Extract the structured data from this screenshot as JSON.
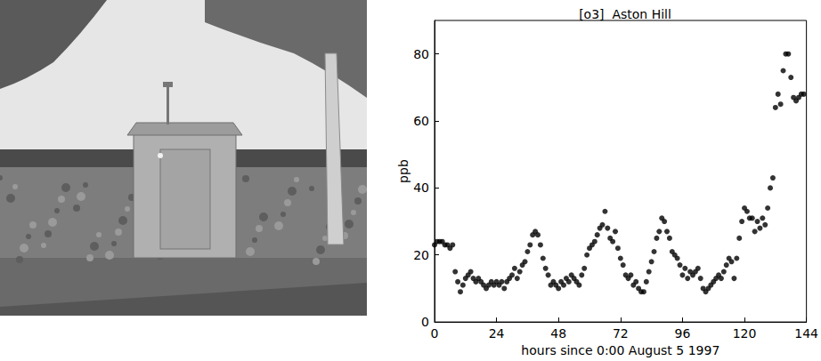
{
  "chart_data": {
    "type": "scatter",
    "title": "[o3]  Aston Hill",
    "x_label": "hours since 0:00 August 5 1997",
    "y_label": "ppb",
    "x": [
      0,
      1,
      2,
      3,
      4,
      5,
      6,
      7,
      8,
      9,
      10,
      11,
      12,
      13,
      14,
      15,
      16,
      17,
      18,
      19,
      20,
      21,
      22,
      23,
      24,
      25,
      26,
      27,
      28,
      29,
      30,
      31,
      32,
      33,
      34,
      35,
      36,
      37,
      38,
      39,
      40,
      41,
      42,
      43,
      44,
      45,
      46,
      47,
      48,
      49,
      50,
      51,
      52,
      53,
      54,
      55,
      56,
      57,
      58,
      59,
      60,
      61,
      62,
      63,
      64,
      65,
      66,
      67,
      68,
      69,
      70,
      71,
      72,
      73,
      74,
      75,
      76,
      77,
      78,
      79,
      80,
      81,
      82,
      83,
      84,
      85,
      86,
      87,
      88,
      89,
      90,
      91,
      92,
      93,
      94,
      95,
      96,
      97,
      98,
      99,
      100,
      101,
      102,
      103,
      104,
      105,
      106,
      107,
      108,
      109,
      110,
      111,
      112,
      113,
      114,
      115,
      116,
      117,
      118,
      119,
      120,
      121,
      122,
      123,
      124,
      125,
      126,
      127,
      128,
      129,
      130,
      131,
      132,
      133,
      134,
      135,
      136,
      137,
      138,
      139,
      140,
      141,
      142,
      143
    ],
    "values": [
      23,
      24,
      24,
      24,
      23,
      23,
      22,
      23,
      15,
      12,
      9,
      11,
      13,
      14,
      15,
      13,
      12,
      13,
      12,
      11,
      10,
      11,
      12,
      11,
      12,
      11,
      12,
      10,
      12,
      13,
      14,
      16,
      13,
      15,
      17,
      18,
      21,
      23,
      26,
      27,
      26,
      23,
      19,
      16,
      14,
      11,
      12,
      11,
      10,
      12,
      11,
      13,
      12,
      14,
      13,
      12,
      11,
      14,
      16,
      20,
      22,
      23,
      24,
      26,
      28,
      29,
      33,
      28,
      25,
      24,
      27,
      22,
      19,
      17,
      14,
      13,
      14,
      11,
      12,
      10,
      9,
      9,
      12,
      15,
      18,
      21,
      25,
      27,
      31,
      30,
      27,
      25,
      21,
      20,
      19,
      17,
      14,
      16,
      13,
      15,
      14,
      15,
      16,
      13,
      10,
      9,
      10,
      11,
      12,
      13,
      14,
      13,
      15,
      17,
      19,
      18,
      13,
      19,
      25,
      30,
      34,
      33,
      31,
      31,
      27,
      30,
      28,
      31,
      29,
      34,
      40,
      43,
      64,
      68,
      65,
      75,
      80,
      80,
      73,
      67,
      66,
      67,
      68,
      68
    ],
    "color": "#000000",
    "marker": "circle",
    "xlim": [
      0,
      144
    ],
    "xticks": [
      0,
      24,
      48,
      72,
      96,
      120,
      144
    ],
    "ylim": [
      0,
      90
    ],
    "yticks": [
      0,
      20,
      40,
      60,
      80
    ],
    "grid": false
  }
}
